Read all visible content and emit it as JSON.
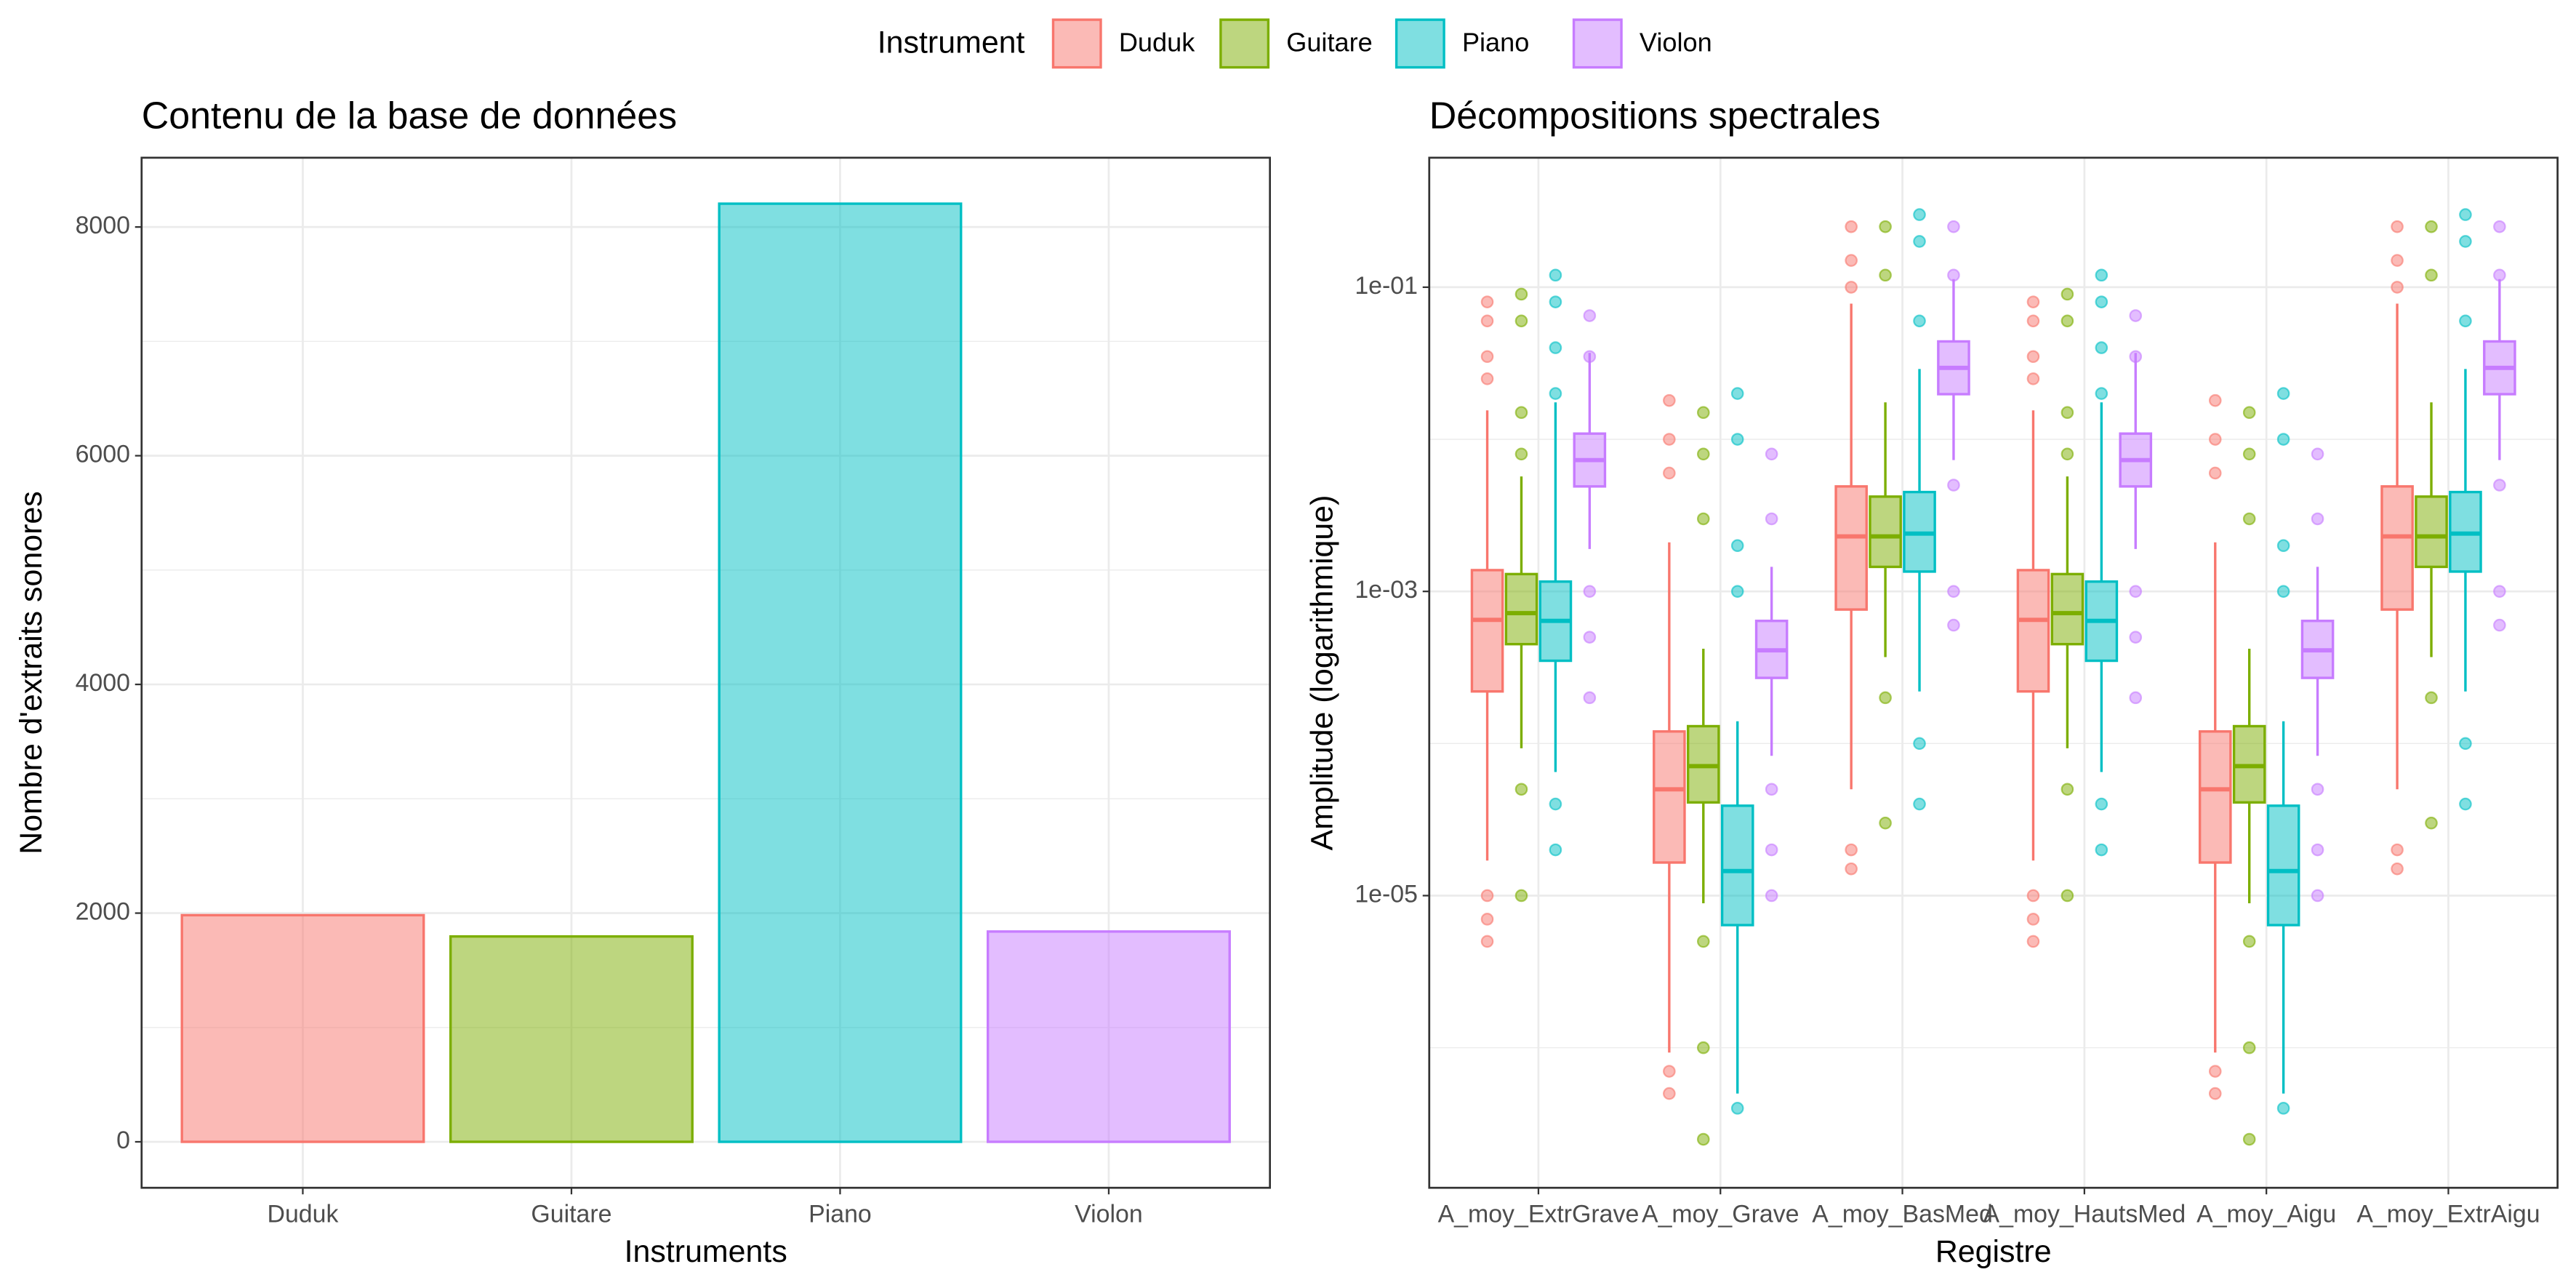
{
  "legend": {
    "title": "Instrument",
    "position": "top"
  },
  "chart_data": [
    {
      "type": "bar",
      "title": "Contenu de la base de données",
      "x_label": "Instruments",
      "y_label": "Nombre d'extraits sonores",
      "categories": [
        "Duduk",
        "Guitare",
        "Piano",
        "Violon"
      ],
      "values": [
        1982,
        1796,
        8204,
        1839
      ],
      "colors": [
        "#F8766D",
        "#7CAE00",
        "#00BFC4",
        "#C77CFF"
      ],
      "ylim": [
        -402,
        8606
      ],
      "yticks": [
        0,
        2000,
        4000,
        6000,
        8000
      ],
      "minor_yticks": [
        1000,
        3000,
        5000,
        7000
      ],
      "grid": true
    },
    {
      "type": "boxplot",
      "title": "Décompositions spectrales",
      "x_label": "Registre",
      "y_label": "Amplitude (logarithmique)",
      "log_y": true,
      "categories": [
        "A_moy_ExtrGrave",
        "A_moy_Grave",
        "A_moy_BasMed",
        "A_moy_HautsMed",
        "A_moy_Aigu",
        "A_moy_ExtrAigu"
      ],
      "ylim": [
        1.2e-07,
        0.71
      ],
      "yticks": [
        {
          "value": 0.1,
          "label": "1e-01"
        },
        {
          "value": 0.001,
          "label": "1e-03"
        },
        {
          "value": 1e-05,
          "label": "1e-05"
        }
      ],
      "minor_yticks": [
        0.01,
        0.0001,
        1e-06
      ],
      "grid": true,
      "series": [
        {
          "name": "Duduk",
          "color": "#F8766D",
          "boxes": [
            {
              "low": 1.7e-05,
              "q1": 0.00022,
              "median": 0.00065,
              "q3": 0.00138,
              "high": 0.0155,
              "outliers": [
                0.08,
                0.06,
                0.035,
                0.025,
                1e-05,
                7e-06,
                5e-06
              ]
            },
            {
              "low": 9.3e-07,
              "q1": 1.65e-05,
              "median": 5e-05,
              "q3": 0.00012,
              "high": 0.0021,
              "outliers": [
                0.018,
                0.01,
                0.006,
                7e-07,
                5e-07
              ]
            },
            {
              "low": 5e-05,
              "q1": 0.00076,
              "median": 0.0023,
              "q3": 0.0049,
              "high": 0.078,
              "outliers": [
                0.25,
                0.15,
                0.1,
                2e-05,
                1.5e-05
              ]
            },
            {
              "low": 1.7e-05,
              "q1": 0.00022,
              "median": 0.00065,
              "q3": 0.00138,
              "high": 0.0155,
              "outliers": [
                0.08,
                0.06,
                0.035,
                0.025,
                1e-05,
                7e-06,
                5e-06
              ]
            },
            {
              "low": 9.3e-07,
              "q1": 1.65e-05,
              "median": 5e-05,
              "q3": 0.00012,
              "high": 0.0021,
              "outliers": [
                0.018,
                0.01,
                0.006,
                7e-07,
                5e-07
              ]
            },
            {
              "low": 5e-05,
              "q1": 0.00076,
              "median": 0.0023,
              "q3": 0.0049,
              "high": 0.078,
              "outliers": [
                0.25,
                0.15,
                0.1,
                2e-05,
                1.5e-05
              ]
            }
          ]
        },
        {
          "name": "Guitare",
          "color": "#7CAE00",
          "boxes": [
            {
              "low": 9.3e-05,
              "q1": 0.00045,
              "median": 0.00072,
              "q3": 0.0013,
              "high": 0.0057,
              "outliers": [
                0.09,
                0.06,
                0.015,
                0.008,
                5e-05,
                1e-05
              ]
            },
            {
              "low": 8.9e-06,
              "q1": 4.1e-05,
              "median": 7.1e-05,
              "q3": 0.00013,
              "high": 0.00042,
              "outliers": [
                0.015,
                0.008,
                0.003,
                5e-06,
                1e-06,
                2.5e-07
              ]
            },
            {
              "low": 0.00037,
              "q1": 0.00145,
              "median": 0.0023,
              "q3": 0.0042,
              "high": 0.0175,
              "outliers": [
                0.25,
                0.12,
                0.0002,
                3e-05
              ]
            },
            {
              "low": 9.3e-05,
              "q1": 0.00045,
              "median": 0.00072,
              "q3": 0.0013,
              "high": 0.0057,
              "outliers": [
                0.09,
                0.06,
                0.015,
                0.008,
                5e-05,
                1e-05
              ]
            },
            {
              "low": 8.9e-06,
              "q1": 4.1e-05,
              "median": 7.1e-05,
              "q3": 0.00013,
              "high": 0.00042,
              "outliers": [
                0.015,
                0.008,
                0.003,
                5e-06,
                1e-06,
                2.5e-07
              ]
            },
            {
              "low": 0.00037,
              "q1": 0.00145,
              "median": 0.0023,
              "q3": 0.0042,
              "high": 0.0175,
              "outliers": [
                0.25,
                0.12,
                0.0002,
                3e-05
              ]
            }
          ]
        },
        {
          "name": "Piano",
          "color": "#00BFC4",
          "boxes": [
            {
              "low": 6.5e-05,
              "q1": 0.00035,
              "median": 0.00064,
              "q3": 0.00116,
              "high": 0.0175,
              "outliers": [
                0.12,
                0.08,
                0.04,
                0.02,
                4e-05,
                2e-05
              ]
            },
            {
              "low": 5e-07,
              "q1": 6.4e-06,
              "median": 1.45e-05,
              "q3": 3.9e-05,
              "high": 0.00014,
              "outliers": [
                0.02,
                0.01,
                0.002,
                0.001,
                4e-07
              ]
            },
            {
              "low": 0.00022,
              "q1": 0.00135,
              "median": 0.0024,
              "q3": 0.0045,
              "high": 0.029,
              "outliers": [
                0.3,
                0.2,
                0.06,
                0.0001,
                4e-05
              ]
            },
            {
              "low": 6.5e-05,
              "q1": 0.00035,
              "median": 0.00064,
              "q3": 0.00116,
              "high": 0.0175,
              "outliers": [
                0.12,
                0.08,
                0.04,
                0.02,
                4e-05,
                2e-05
              ]
            },
            {
              "low": 5e-07,
              "q1": 6.4e-06,
              "median": 1.45e-05,
              "q3": 3.9e-05,
              "high": 0.00014,
              "outliers": [
                0.02,
                0.01,
                0.002,
                0.001,
                4e-07
              ]
            },
            {
              "low": 0.00022,
              "q1": 0.00135,
              "median": 0.0024,
              "q3": 0.0045,
              "high": 0.029,
              "outliers": [
                0.3,
                0.2,
                0.06,
                0.0001,
                4e-05
              ]
            }
          ]
        },
        {
          "name": "Violon",
          "color": "#C77CFF",
          "boxes": [
            {
              "low": 0.0019,
              "q1": 0.0049,
              "median": 0.0073,
              "q3": 0.0109,
              "high": 0.037,
              "outliers": [
                0.065,
                0.035,
                0.001,
                0.0005,
                0.0002
              ]
            },
            {
              "low": 8.3e-05,
              "q1": 0.00027,
              "median": 0.00041,
              "q3": 0.00064,
              "high": 0.00145,
              "outliers": [
                0.008,
                0.003,
                5e-05,
                2e-05,
                1e-05
              ]
            },
            {
              "low": 0.0073,
              "q1": 0.0198,
              "median": 0.0295,
              "q3": 0.044,
              "high": 0.113,
              "outliers": [
                0.25,
                0.12,
                0.005,
                0.001,
                0.0006
              ]
            },
            {
              "low": 0.0019,
              "q1": 0.0049,
              "median": 0.0073,
              "q3": 0.0109,
              "high": 0.037,
              "outliers": [
                0.065,
                0.035,
                0.001,
                0.0005,
                0.0002
              ]
            },
            {
              "low": 8.3e-05,
              "q1": 0.00027,
              "median": 0.00041,
              "q3": 0.00064,
              "high": 0.00145,
              "outliers": [
                0.008,
                0.003,
                5e-05,
                2e-05,
                1e-05
              ]
            },
            {
              "low": 0.0073,
              "q1": 0.0198,
              "median": 0.0295,
              "q3": 0.044,
              "high": 0.113,
              "outliers": [
                0.25,
                0.12,
                0.005,
                0.001,
                0.0006
              ]
            }
          ]
        }
      ]
    }
  ]
}
